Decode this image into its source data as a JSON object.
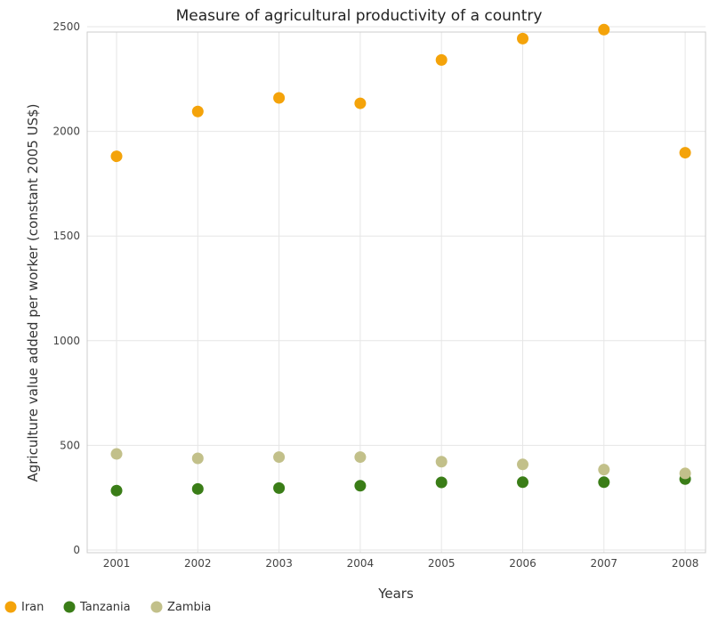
{
  "title": "Measure of agricultural productivity of a country",
  "chart_data": {
    "type": "scatter",
    "title": "Measure of agricultural productivity of a country",
    "xlabel": "Years",
    "ylabel": "Agriculture value added per worker (constant 2005 US$)",
    "categories": [
      "2001",
      "2002",
      "2003",
      "2004",
      "2005",
      "2006",
      "2007",
      "2008"
    ],
    "ylim": [
      0,
      2600
    ],
    "yticks": [
      0,
      500,
      1000,
      1500,
      2000,
      2500
    ],
    "grid": true,
    "legend_position": "bottom-left",
    "series": [
      {
        "name": "Iran",
        "color": "#f4a30a",
        "values": [
          1881,
          2095,
          2160,
          2134,
          2341,
          2443,
          2486,
          1898
        ]
      },
      {
        "name": "Tanzania",
        "color": "#3a7d17",
        "values": [
          284,
          292,
          296,
          307,
          323,
          324,
          324,
          339
        ]
      },
      {
        "name": "Zambia",
        "color": "#c2c08a",
        "values": [
          459,
          438,
          444,
          444,
          422,
          409,
          384,
          366
        ]
      }
    ]
  }
}
